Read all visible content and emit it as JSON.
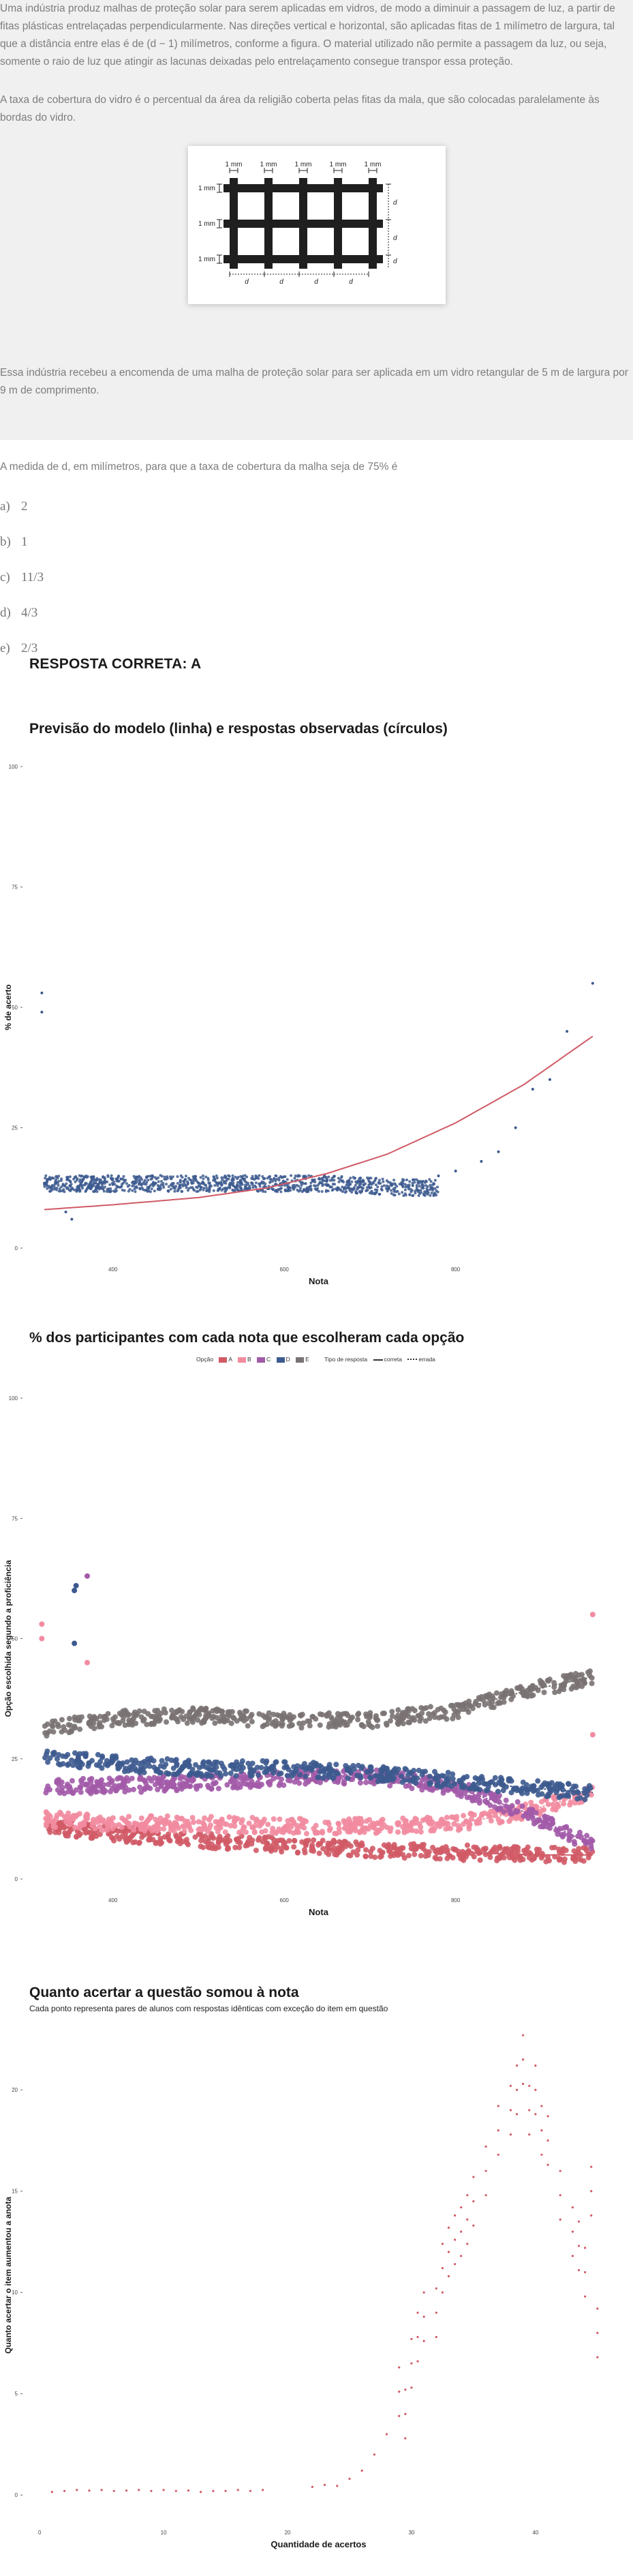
{
  "stem": {
    "paragraph1": "Uma indústria produz malhas de proteção solar para serem aplicadas em vidros, de modo a diminuir a passagem de luz, a partir de fitas plásticas entrelaçadas perpendicularmente. Nas direções vertical e horizontal, são aplicadas fitas de 1 milímetro de largura, tal que a distância entre elas é de (d − 1) milímetros, conforme a figura. O material utilizado não permite a passagem da luz, ou seja, somente o raio de luz que atingir as lacunas deixadas pelo entrelaçamento consegue transpor essa proteção.",
    "paragraph2": "A taxa de cobertura do vidro é o percentual da área da religião coberta pelas fitas da mala, que são colocadas paralelamente às bordas do vidro.",
    "paragraph3": "Essa indústria recebeu a encomenda de uma malha de proteção solar para ser aplicada em um vidro retangular de 5 m de largura por 9 m de comprimento.",
    "figure": {
      "tape_label": "1 mm",
      "spacing_label": "d"
    }
  },
  "question": "A medida de d, em milímetros, para que a taxa de cobertura da malha seja de 75% é",
  "options": [
    {
      "letter": "a)",
      "value": "2"
    },
    {
      "letter": "b)",
      "value": "1"
    },
    {
      "letter": "c)",
      "value": "11/3"
    },
    {
      "letter": "d)",
      "value": "4/3"
    },
    {
      "letter": "e)",
      "value": "2/3"
    }
  ],
  "answer_text": "RESPOSTA CORRETA: A",
  "chart_data": [
    {
      "type": "scatter",
      "title": "Previsão do modelo (linha) e respostas observadas (círculos)",
      "xlabel": "Nota",
      "ylabel": "% de acerto",
      "x_ticks": [
        "400",
        "600",
        "800"
      ],
      "x_tick_values": [
        400,
        600,
        800
      ],
      "xlim": [
        300,
        980
      ],
      "y_ticks": [
        "0",
        "25",
        "50",
        "75",
        "100"
      ],
      "ylim": [
        0,
        100
      ],
      "grid": false,
      "series": [
        {
          "color": "#3d5a8f",
          "points": [
            [
              320,
              13.5
            ],
            [
              350,
              13
            ],
            [
              380,
              13.5
            ],
            [
              400,
              13.2
            ],
            [
              450,
              13.5
            ],
            [
              500,
              13.5
            ],
            [
              550,
              13.6
            ],
            [
              600,
              13.5
            ],
            [
              650,
              13
            ],
            [
              700,
              12.5
            ],
            [
              750,
              13
            ],
            [
              780,
              15
            ],
            [
              800,
              16
            ],
            [
              830,
              18
            ],
            [
              850,
              20
            ],
            [
              870,
              25
            ],
            [
              890,
              33
            ],
            [
              910,
              35
            ],
            [
              930,
              45
            ],
            [
              960,
              55
            ],
            [
              317,
              49
            ],
            [
              317,
              53
            ],
            [
              345,
              7.5
            ],
            [
              352,
              6
            ]
          ]
        },
        {
          "color": "#d05a66",
          "curve": [
            [
              320,
              8
            ],
            [
              400,
              9
            ],
            [
              500,
              10.5
            ],
            [
              580,
              12.5
            ],
            [
              650,
              15.5
            ],
            [
              720,
              19.5
            ],
            [
              800,
              26
            ],
            [
              880,
              34
            ],
            [
              960,
              44
            ]
          ]
        }
      ]
    },
    {
      "type": "scatter",
      "title": "% dos participantes com cada nota que escolheram cada opção",
      "xlabel": "Nota",
      "ylabel": "Opção escolhida segundo a proficiência",
      "legend": {
        "opcao_label": "Opção",
        "options": [
          "A",
          "B",
          "C",
          "D",
          "E"
        ],
        "tipo_label": "Tipo de resposta",
        "types": [
          "correta",
          "errada"
        ]
      },
      "x_ticks": [
        "400",
        "600",
        "800"
      ],
      "x_tick_values": [
        400,
        600,
        800
      ],
      "xlim": [
        300,
        980
      ],
      "y_ticks": [
        "0",
        "25",
        "50",
        "75",
        "100"
      ],
      "ylim": [
        0,
        100
      ],
      "grid": false,
      "series": [
        {
          "name": "A",
          "color": "#d05a66",
          "curve": [
            [
              320,
              11
            ],
            [
              400,
              9.5
            ],
            [
              500,
              8
            ],
            [
              600,
              7
            ],
            [
              700,
              6
            ],
            [
              800,
              5.5
            ],
            [
              900,
              5
            ],
            [
              960,
              5
            ]
          ]
        },
        {
          "name": "B",
          "color": "#f28ba0",
          "curve": [
            [
              320,
              12.5
            ],
            [
              400,
              11.5
            ],
            [
              500,
              11.5
            ],
            [
              600,
              11
            ],
            [
              700,
              11
            ],
            [
              800,
              11.5
            ],
            [
              880,
              14
            ],
            [
              960,
              18
            ]
          ]
        },
        {
          "name": "C",
          "color": "#a25aa8",
          "curve": [
            [
              320,
              19
            ],
            [
              400,
              19.5
            ],
            [
              500,
              20
            ],
            [
              600,
              21
            ],
            [
              700,
              21.5
            ],
            [
              800,
              19
            ],
            [
              880,
              14
            ],
            [
              960,
              7
            ]
          ]
        },
        {
          "name": "D",
          "color": "#3d5a8f",
          "curve": [
            [
              320,
              25.5
            ],
            [
              400,
              24
            ],
            [
              500,
              23
            ],
            [
              600,
              23
            ],
            [
              700,
              22
            ],
            [
              800,
              20.5
            ],
            [
              880,
              19
            ],
            [
              960,
              18
            ]
          ]
        },
        {
          "name": "E",
          "color": "#7a7272",
          "curve": [
            [
              320,
              31
            ],
            [
              400,
              33.5
            ],
            [
              500,
              34
            ],
            [
              600,
              33
            ],
            [
              700,
              33
            ],
            [
              800,
              35
            ],
            [
              880,
              39
            ],
            [
              960,
              42
            ]
          ]
        }
      ],
      "outliers": [
        [
          317,
          50
        ],
        [
          317,
          53
        ],
        [
          355,
          60
        ],
        [
          357,
          61
        ],
        [
          355,
          49
        ],
        [
          370,
          63
        ],
        [
          370,
          45
        ],
        [
          960,
          55
        ],
        [
          960,
          30
        ],
        [
          950,
          8
        ]
      ]
    },
    {
      "type": "scatter",
      "title": "Quanto acertar a questão somou à nota",
      "subtitle": "Cada ponto representa pares de alunos com respostas idênticas com exceção do item em questão",
      "xlabel": "Quantidade de acertos",
      "ylabel": "Quanto acertar o item aumentou a anota",
      "x_ticks": [
        "0",
        "10",
        "20",
        "30",
        "40"
      ],
      "x_tick_values": [
        0,
        10,
        20,
        30,
        40
      ],
      "xlim": [
        -1,
        46
      ],
      "y_ticks": [
        "0",
        "5",
        "10",
        "15",
        "20"
      ],
      "ylim": [
        -0.8,
        22.5
      ],
      "grid": false,
      "series": [
        {
          "color": "#d05a66",
          "points": [
            [
              1,
              0.15
            ],
            [
              2,
              0.2
            ],
            [
              3,
              0.25
            ],
            [
              4,
              0.22
            ],
            [
              5,
              0.25
            ],
            [
              6,
              0.2
            ],
            [
              7,
              0.22
            ],
            [
              8,
              0.25
            ],
            [
              9,
              0.2
            ],
            [
              10,
              0.25
            ],
            [
              11,
              0.2
            ],
            [
              12,
              0.22
            ],
            [
              13,
              0.15
            ],
            [
              14,
              0.2
            ],
            [
              15,
              0.2
            ],
            [
              16,
              0.25
            ],
            [
              17,
              0.2
            ],
            [
              18,
              0.25
            ],
            [
              22,
              0.4
            ],
            [
              23,
              0.5
            ],
            [
              24,
              0.45
            ],
            [
              25,
              0.8
            ],
            [
              26,
              1.2
            ],
            [
              27,
              2.0
            ],
            [
              28,
              3.0
            ],
            [
              29,
              5.1
            ],
            [
              29.5,
              4.0
            ],
            [
              30,
              6.5
            ],
            [
              30.5,
              7.8
            ],
            [
              31,
              8.8
            ],
            [
              32,
              9.0
            ],
            [
              32.5,
              11.2
            ],
            [
              33,
              12.0
            ],
            [
              33.5,
              12.6
            ],
            [
              34,
              13.0
            ],
            [
              34.5,
              13.6
            ],
            [
              35,
              14.5
            ],
            [
              36,
              16.0
            ],
            [
              37,
              18.0
            ],
            [
              38,
              19.0
            ],
            [
              38.5,
              20.0
            ],
            [
              39,
              21.5
            ],
            [
              39.5,
              19.0
            ],
            [
              40,
              20.0
            ],
            [
              40.5,
              18.0
            ],
            [
              41,
              17.5
            ],
            [
              42,
              14.8
            ],
            [
              43,
              13.0
            ],
            [
              43.5,
              12.3
            ],
            [
              44,
              11.0
            ],
            [
              44.5,
              15.0
            ],
            [
              45,
              8.0
            ]
          ]
        }
      ]
    }
  ]
}
